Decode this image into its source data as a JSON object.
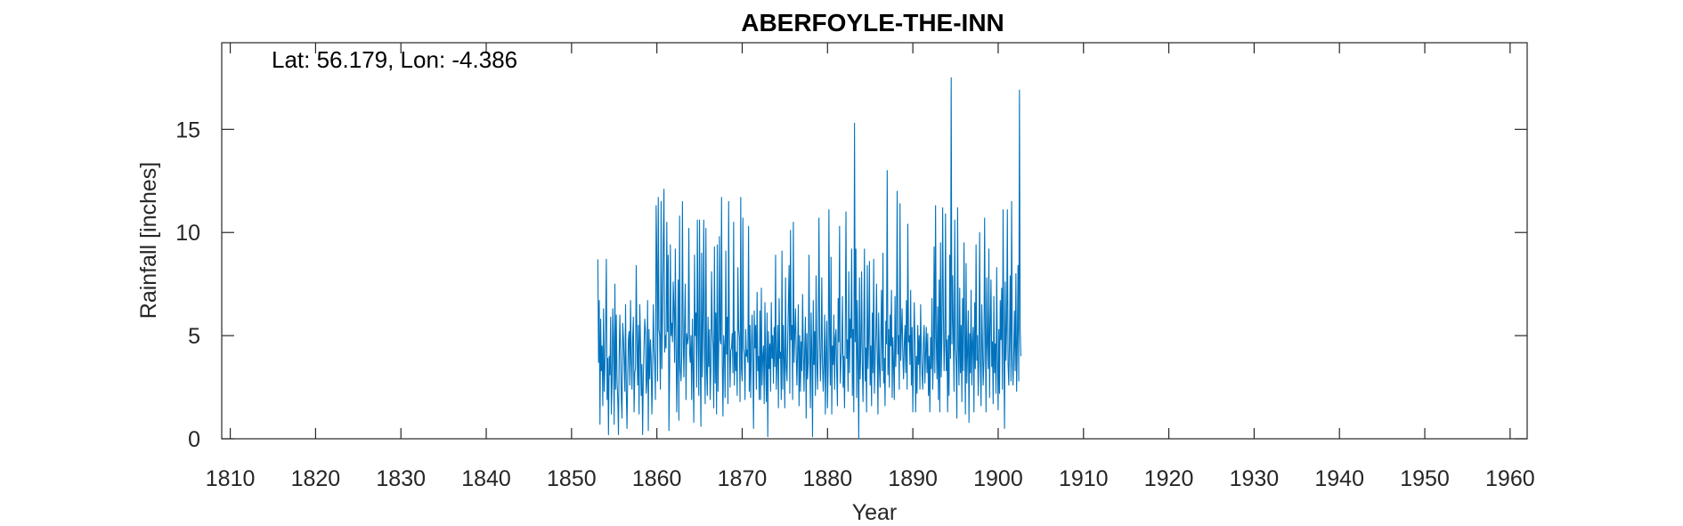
{
  "chart_data": {
    "type": "line",
    "title": "ABERFOYLE-THE-INN",
    "annotation": "Lat: 56.179, Lon: -4.386",
    "xlabel": "Year",
    "ylabel": "Rainfall [inches]",
    "xlim": [
      1809,
      1962
    ],
    "ylim": [
      0,
      19.2
    ],
    "xticks": [
      1810,
      1820,
      1830,
      1840,
      1850,
      1860,
      1870,
      1880,
      1890,
      1900,
      1910,
      1920,
      1930,
      1940,
      1950,
      1960
    ],
    "yticks": [
      0,
      5,
      10,
      15
    ],
    "grid": false,
    "box": true,
    "line_color": "#0072BD",
    "series": [
      {
        "x_start": 1853.08,
        "x_step": 0.08333,
        "values": [
          8.7,
          3.7,
          6.7,
          0.7,
          5.8,
          3.3,
          4.5,
          1.6,
          6.3,
          2.3,
          3.5,
          5.5,
          8.7,
          1.9,
          3.9,
          0.2,
          4.0,
          3.1,
          5.9,
          1.2,
          2.7,
          6.3,
          4.6,
          0.7,
          7.5,
          2.4,
          6.0,
          2.8,
          2.0,
          0.2,
          3.9,
          6.0,
          4.2,
          2.0,
          1.0,
          5.6,
          4.9,
          3.8,
          2.3,
          6.5,
          2.4,
          0.5,
          3.0,
          4.8,
          5.2,
          2.6,
          6.7,
          3.8,
          2.4,
          4.9,
          5.9,
          1.3,
          3.2,
          3.4,
          8.4,
          4.7,
          2.6,
          5.5,
          1.2,
          6.5,
          4.7,
          2.1,
          3.6,
          0.2,
          3.0,
          4.5,
          5.8,
          5.2,
          2.2,
          2.8,
          6.7,
          0.4,
          5.3,
          2.9,
          4.8,
          3.9,
          1.2,
          3.0,
          6.5,
          4.4,
          3.7,
          1.9,
          11.3,
          8.7,
          2.8,
          11.7,
          5.3,
          5.0,
          2.4,
          11.5,
          3.4,
          5.8,
          9.5,
          12.1,
          4.2,
          5.0,
          4.4,
          10.5,
          5.2,
          8.9,
          0.4,
          3.3,
          9.4,
          5.0,
          5.6,
          4.7,
          7.6,
          6.3,
          3.7,
          9.2,
          4.8,
          1.3,
          3.8,
          7.7,
          0.9,
          10.8,
          3.4,
          2.8,
          4.0,
          11.5,
          5.1,
          3.0,
          5.5,
          7.5,
          1.9,
          5.1,
          4.6,
          4.9,
          10.2,
          4.2,
          3.7,
          5.0,
          1.9,
          5.8,
          3.3,
          0.8,
          8.9,
          5.0,
          6.1,
          2.5,
          10.6,
          5.0,
          2.1,
          10.6,
          4.1,
          0.6,
          9.0,
          3.0,
          5.8,
          10.6,
          4.1,
          1.7,
          10.2,
          3.3,
          2.1,
          5.9,
          3.5,
          5.3,
          1.9,
          3.3,
          8.1,
          5.3,
          4.5,
          1.5,
          9.3,
          2.7,
          6.1,
          1.2,
          9.4,
          2.3,
          4.4,
          9.8,
          4.8,
          4.6,
          11.7,
          3.8,
          1.1,
          5.0,
          4.4,
          2.0,
          9.1,
          4.1,
          5.9,
          1.7,
          11.5,
          5.0,
          2.5,
          4.3,
          4.4,
          5.1,
          3.2,
          10.5,
          2.6,
          5.2,
          3.3,
          4.2,
          2.1,
          8.3,
          5.3,
          4.9,
          1.8,
          11.7,
          3.4,
          2.8,
          10.7,
          4.4,
          4.1,
          1.9,
          5.3,
          4.0,
          4.3,
          3.7,
          10.3,
          2.3,
          5.5,
          2.0,
          4.4,
          6.0,
          3.6,
          0.5,
          6.2,
          4.4,
          5.5,
          2.4,
          7.1,
          3.3,
          4.0,
          1.9,
          6.2,
          1.9,
          7.3,
          2.6,
          4.0,
          4.5,
          1.7,
          6.6,
          3.6,
          1.8,
          6.1,
          0.1,
          5.2,
          3.4,
          4.6,
          2.3,
          6.6,
          3.9,
          5.0,
          2.7,
          5.4,
          3.5,
          8.9,
          2.4,
          3.7,
          5.5,
          1.5,
          6.8,
          3.9,
          4.2,
          1.9,
          9.1,
          2.4,
          5.5,
          3.8,
          1.5,
          7.8,
          3.5,
          2.8,
          4.6,
          6.5,
          8.4,
          2.2,
          10.1,
          4.8,
          5.5,
          1.9,
          10.5,
          3.7,
          5.1,
          6.3,
          4.2,
          2.6,
          4.3,
          6.5,
          1.6,
          5.0,
          2.3,
          4.7,
          3.3,
          7.0,
          4.3,
          2.3,
          4.4,
          5.9,
          1.0,
          5.1,
          2.9,
          3.7,
          8.9,
          4.1,
          1.5,
          6.1,
          4.1,
          0.1,
          6.7,
          3.6,
          5.2,
          2.1,
          7.9,
          3.7,
          2.4,
          4.8,
          10.7,
          5.1,
          2.8,
          4.2,
          7.8,
          3.6,
          2.3,
          3.7,
          6.0,
          1.2,
          4.1,
          5.7,
          1.5,
          3.5,
          11.1,
          5.0,
          2.6,
          8.8,
          1.2,
          4.5,
          3.6,
          6.0,
          2.4,
          4.9,
          5.3,
          3.2,
          1.6,
          6.8,
          4.7,
          10.3,
          2.7,
          3.8,
          4.2,
          6.9,
          2.5,
          4.0,
          1.5,
          5.1,
          11.0,
          3.9,
          4.8,
          2.3,
          8.1,
          3.2,
          5.8,
          4.9,
          9.2,
          2.1,
          5.3,
          1.3,
          15.3,
          4.7,
          9.2,
          2.0,
          6.7,
          3.6,
          0.0,
          7.8,
          2.9,
          4.6,
          8.1,
          3.6,
          1.8,
          5.0,
          9.2,
          2.8,
          4.4,
          1.3,
          8.4,
          3.4,
          5.0,
          8.6,
          2.6,
          4.5,
          1.6,
          6.1,
          3.2,
          8.7,
          2.2,
          3.8,
          5.0,
          7.5,
          4.1,
          1.2,
          6.1,
          3.5,
          2.5,
          4.8,
          7.2,
          3.3,
          9.0,
          2.7,
          3.9,
          1.6,
          5.7,
          4.6,
          13.0,
          3.1,
          5.3,
          2.5,
          6.0,
          4.5,
          7.2,
          2.0,
          4.9,
          3.6,
          1.9,
          6.9,
          3.5,
          5.0,
          12.0,
          4.1,
          5.0,
          2.4,
          11.4,
          3.8,
          5.2,
          6.3,
          4.0,
          2.9,
          4.6,
          5.5,
          3.2,
          6.7,
          2.4,
          10.4,
          4.7,
          5.0,
          3.6,
          7.2,
          2.6,
          5.4,
          1.3,
          3.9,
          6.6,
          4.8,
          1.3,
          4.0,
          2.2,
          5.5,
          3.6,
          5.0,
          2.4,
          6.5,
          4.3,
          3.1,
          2.4,
          4.8,
          5.5,
          2.7,
          4.1,
          5.4,
          3.2,
          5.1,
          2.1,
          4.0,
          1.3,
          4.9,
          3.4,
          6.8,
          2.4,
          4.1,
          9.3,
          3.2,
          11.3,
          4.8,
          2.9,
          6.4,
          1.9,
          7.7,
          1.3,
          9.5,
          3.0,
          5.1,
          11.2,
          6.2,
          3.3,
          4.6,
          10.9,
          3.3,
          4.8,
          1.3,
          5.0,
          2.1,
          8.9,
          3.9,
          17.5,
          4.6,
          7.9,
          5.0,
          2.3,
          10.6,
          4.4,
          3.6,
          1.0,
          11.2,
          4.4,
          2.6,
          7.3,
          3.2,
          5.5,
          1.8,
          6.8,
          3.3,
          9.5,
          4.9,
          1.2,
          8.5,
          2.7,
          4.2,
          6.2,
          0.8,
          5.1,
          3.2,
          7.2,
          2.6,
          4.7,
          5.4,
          1.3,
          6.6,
          3.4,
          9.4,
          3.8,
          5.0,
          2.1,
          4.1,
          10.0,
          3.7,
          1.6,
          6.5,
          4.6,
          2.6,
          3.8,
          10.7,
          5.1,
          1.3,
          7.8,
          4.6,
          3.4,
          9.2,
          2.0,
          5.4,
          7.7,
          3.5,
          4.7,
          1.7,
          6.9,
          3.2,
          4.6,
          2.2,
          8.3,
          3.9,
          1.4,
          5.3,
          2.2,
          6.7,
          4.8,
          7.3,
          2.4,
          11.1,
          4.6,
          0.5,
          7.6,
          3.8,
          5.4,
          11.1,
          3.6,
          2.6,
          4.8,
          7.9,
          2.8,
          11.5,
          3.9,
          2.6,
          4.2,
          6.2,
          3.3,
          8.0,
          2.3,
          4.7,
          8.4,
          2.8,
          16.9,
          5.3,
          4.0
        ]
      }
    ]
  }
}
